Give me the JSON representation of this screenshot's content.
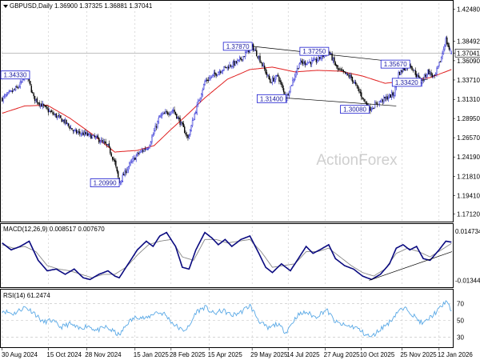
{
  "chart_data": {
    "type": "candlestick",
    "symbol": "GBPUSD",
    "title": "GBPUSD,Daily 1.36900 1.37325 1.36881 1.37041",
    "ohlc_last": {
      "open": 1.369,
      "high": 1.37325,
      "low": 1.36881,
      "close": 1.37041
    },
    "watermark": "ActionForex",
    "colors": {
      "bull": "#1a1ad0",
      "bear": "#000000",
      "ma": "#e02020",
      "trendline": "#000000",
      "annot_box": "#1a1ad0",
      "macd": "#0a0a80",
      "signal": "#888888",
      "rsi": "#5aa9e6",
      "grid": "#b8b8b8"
    },
    "price_axis": {
      "ylim": [
        1.163,
        1.432
      ],
      "ticks": [
        "1.42480",
        "1.38492",
        "1.37041",
        "1.36090",
        "1.33710",
        "1.31310",
        "1.28950",
        "1.26570",
        "1.24190",
        "1.21810",
        "1.19410",
        "1.17120"
      ],
      "current": "1.37041"
    },
    "x_axis": {
      "n_bars": 400,
      "tick_labels": [
        "30 Aug 2024",
        "15 Oct 2024",
        "28 Nov 2024",
        "15 Jan 2025",
        "28 Feb 2025",
        "15 Apr 2025",
        "29 May 2025",
        "14 Jul 2025",
        "27 Aug 2025",
        "10 Oct 2025",
        "25 Nov 2025",
        "12 Jan 2026"
      ],
      "tick_positions": [
        0,
        41,
        75,
        118,
        150,
        184,
        222,
        254,
        287,
        319,
        355,
        388
      ]
    },
    "price_path": [
      [
        0,
        1.314
      ],
      [
        14,
        1.328
      ],
      [
        22,
        1.3433
      ],
      [
        28,
        1.315
      ],
      [
        40,
        1.3
      ],
      [
        56,
        1.285
      ],
      [
        64,
        1.273
      ],
      [
        74,
        1.27
      ],
      [
        84,
        1.265
      ],
      [
        94,
        1.255
      ],
      [
        100,
        1.235
      ],
      [
        104,
        1.2099
      ],
      [
        112,
        1.23
      ],
      [
        120,
        1.245
      ],
      [
        130,
        1.255
      ],
      [
        140,
        1.292
      ],
      [
        152,
        1.3
      ],
      [
        160,
        1.28
      ],
      [
        165,
        1.265
      ],
      [
        172,
        1.3
      ],
      [
        180,
        1.335
      ],
      [
        195,
        1.35
      ],
      [
        210,
        1.36
      ],
      [
        222,
        1.3787
      ],
      [
        228,
        1.365
      ],
      [
        238,
        1.335
      ],
      [
        245,
        1.342
      ],
      [
        252,
        1.314
      ],
      [
        264,
        1.358
      ],
      [
        278,
        1.36
      ],
      [
        290,
        1.3725
      ],
      [
        298,
        1.35
      ],
      [
        310,
        1.34
      ],
      [
        326,
        1.3008
      ],
      [
        335,
        1.31
      ],
      [
        348,
        1.32
      ],
      [
        352,
        1.345
      ],
      [
        362,
        1.3567
      ],
      [
        372,
        1.3342
      ],
      [
        378,
        1.348
      ],
      [
        384,
        1.34
      ],
      [
        390,
        1.365
      ],
      [
        394,
        1.387
      ],
      [
        397,
        1.375
      ],
      [
        399,
        1.3704
      ]
    ],
    "moving_average": [
      [
        0,
        1.296
      ],
      [
        20,
        1.305
      ],
      [
        40,
        1.306
      ],
      [
        60,
        1.29
      ],
      [
        80,
        1.27
      ],
      [
        100,
        1.248
      ],
      [
        120,
        1.25
      ],
      [
        135,
        1.256
      ],
      [
        150,
        1.276
      ],
      [
        165,
        1.295
      ],
      [
        180,
        1.315
      ],
      [
        200,
        1.338
      ],
      [
        220,
        1.35
      ],
      [
        240,
        1.353
      ],
      [
        260,
        1.347
      ],
      [
        280,
        1.349
      ],
      [
        300,
        1.348
      ],
      [
        320,
        1.342
      ],
      [
        340,
        1.333
      ],
      [
        360,
        1.336
      ],
      [
        380,
        1.34
      ],
      [
        399,
        1.35
      ]
    ],
    "trendlines": [
      {
        "from": [
          222,
          1.3787
        ],
        "to": [
          340,
          1.361
        ]
      },
      {
        "from": [
          240,
          1.316
        ],
        "to": [
          350,
          1.305
        ]
      },
      {
        "from": [
          355,
          1.333
        ],
        "to": [
          378,
          1.338
        ]
      }
    ],
    "annotations": [
      {
        "label": "1.37870",
        "bar": 222,
        "price": 1.3787,
        "side": "left"
      },
      {
        "label": "1.37250",
        "bar": 290,
        "price": 1.3725,
        "side": "left"
      },
      {
        "label": "1.31400",
        "bar": 252,
        "price": 1.314,
        "side": "left"
      },
      {
        "label": "1.30080",
        "bar": 326,
        "price": 1.3008,
        "side": "left"
      },
      {
        "label": "1.35670",
        "bar": 362,
        "price": 1.3567,
        "side": "left"
      },
      {
        "label": "1.33420",
        "bar": 372,
        "price": 1.3342,
        "side": "left"
      },
      {
        "label": "1.20990",
        "bar": 104,
        "price": 1.2099,
        "side": "left"
      },
      {
        "label": "1.34330",
        "bar": 22,
        "price": 1.3433,
        "side": "left"
      }
    ],
    "macd": {
      "label": "MACD(12,26,9) 0.008517 0.007670",
      "ylim": [
        -0.0165,
        0.0175
      ],
      "ticks": [
        "0.014734",
        "-0.013442"
      ],
      "line_path": [
        [
          0,
          0.008
        ],
        [
          8,
          0.004
        ],
        [
          16,
          0.006
        ],
        [
          24,
          0.009
        ],
        [
          32,
          -0.002
        ],
        [
          40,
          -0.008
        ],
        [
          48,
          -0.007
        ],
        [
          56,
          -0.01
        ],
        [
          64,
          -0.007
        ],
        [
          72,
          -0.012
        ],
        [
          78,
          -0.013
        ],
        [
          86,
          -0.01
        ],
        [
          94,
          -0.008
        ],
        [
          100,
          -0.011
        ],
        [
          104,
          -0.012
        ],
        [
          112,
          -0.004
        ],
        [
          120,
          0.004
        ],
        [
          128,
          0.009
        ],
        [
          134,
          0.006
        ],
        [
          140,
          0.012
        ],
        [
          146,
          0.014
        ],
        [
          154,
          0.006
        ],
        [
          160,
          -0.006
        ],
        [
          166,
          -0.007
        ],
        [
          172,
          0.004
        ],
        [
          180,
          0.014
        ],
        [
          186,
          0.011
        ],
        [
          192,
          0.007
        ],
        [
          198,
          0.01
        ],
        [
          204,
          0.006
        ],
        [
          212,
          0.01
        ],
        [
          220,
          0.012
        ],
        [
          228,
          0.002
        ],
        [
          234,
          -0.006
        ],
        [
          240,
          -0.009
        ],
        [
          248,
          -0.004
        ],
        [
          256,
          -0.008
        ],
        [
          262,
          -0.002
        ],
        [
          270,
          0.006
        ],
        [
          276,
          0.002
        ],
        [
          282,
          0.004
        ],
        [
          290,
          0.007
        ],
        [
          296,
          -0.001
        ],
        [
          304,
          -0.005
        ],
        [
          312,
          -0.007
        ],
        [
          320,
          -0.011
        ],
        [
          328,
          -0.013
        ],
        [
          336,
          -0.01
        ],
        [
          344,
          -0.004
        ],
        [
          350,
          0.005
        ],
        [
          356,
          0.007
        ],
        [
          362,
          0.004
        ],
        [
          368,
          0.006
        ],
        [
          374,
          -0.001
        ],
        [
          380,
          -0.002
        ],
        [
          388,
          0.004
        ],
        [
          394,
          0.009
        ],
        [
          399,
          0.0085
        ]
      ],
      "signal_path": [
        [
          0,
          0.007
        ],
        [
          10,
          0.005
        ],
        [
          20,
          0.006
        ],
        [
          30,
          0.003
        ],
        [
          40,
          -0.005
        ],
        [
          50,
          -0.007
        ],
        [
          60,
          -0.008
        ],
        [
          70,
          -0.01
        ],
        [
          80,
          -0.012
        ],
        [
          90,
          -0.01
        ],
        [
          100,
          -0.01
        ],
        [
          110,
          -0.006
        ],
        [
          120,
          0.001
        ],
        [
          130,
          0.007
        ],
        [
          140,
          0.009
        ],
        [
          150,
          0.01
        ],
        [
          160,
          0.0
        ],
        [
          170,
          -0.002
        ],
        [
          180,
          0.01
        ],
        [
          190,
          0.01
        ],
        [
          200,
          0.008
        ],
        [
          210,
          0.009
        ],
        [
          220,
          0.01
        ],
        [
          230,
          0.003
        ],
        [
          240,
          -0.006
        ],
        [
          250,
          -0.005
        ],
        [
          260,
          -0.004
        ],
        [
          270,
          0.003
        ],
        [
          280,
          0.003
        ],
        [
          290,
          0.005
        ],
        [
          300,
          0.0
        ],
        [
          310,
          -0.005
        ],
        [
          320,
          -0.009
        ],
        [
          330,
          -0.011
        ],
        [
          340,
          -0.007
        ],
        [
          350,
          0.002
        ],
        [
          360,
          0.005
        ],
        [
          370,
          0.003
        ],
        [
          380,
          0.0
        ],
        [
          390,
          0.004
        ],
        [
          399,
          0.0077
        ]
      ],
      "trendline": {
        "from": [
          326,
          -0.0135
        ],
        "to": [
          399,
          0.003
        ]
      }
    },
    "rsi": {
      "label": "RSI(14) 61.2474",
      "ylim": [
        20,
        85
      ],
      "levels": [
        "70",
        "50",
        "30"
      ],
      "tick_labels": [
        "70",
        "50",
        "30"
      ],
      "path": [
        [
          0,
          62
        ],
        [
          10,
          58
        ],
        [
          20,
          66
        ],
        [
          28,
          60
        ],
        [
          36,
          48
        ],
        [
          44,
          50
        ],
        [
          52,
          42
        ],
        [
          60,
          46
        ],
        [
          68,
          40
        ],
        [
          76,
          44
        ],
        [
          84,
          38
        ],
        [
          92,
          42
        ],
        [
          100,
          36
        ],
        [
          104,
          32
        ],
        [
          112,
          48
        ],
        [
          120,
          55
        ],
        [
          128,
          52
        ],
        [
          136,
          60
        ],
        [
          144,
          58
        ],
        [
          152,
          46
        ],
        [
          160,
          38
        ],
        [
          166,
          42
        ],
        [
          172,
          60
        ],
        [
          180,
          66
        ],
        [
          188,
          58
        ],
        [
          196,
          62
        ],
        [
          204,
          56
        ],
        [
          212,
          60
        ],
        [
          220,
          68
        ],
        [
          228,
          50
        ],
        [
          236,
          40
        ],
        [
          244,
          46
        ],
        [
          252,
          36
        ],
        [
          262,
          56
        ],
        [
          270,
          60
        ],
        [
          278,
          54
        ],
        [
          288,
          63
        ],
        [
          296,
          48
        ],
        [
          304,
          44
        ],
        [
          314,
          42
        ],
        [
          322,
          34
        ],
        [
          328,
          30
        ],
        [
          336,
          40
        ],
        [
          344,
          48
        ],
        [
          352,
          62
        ],
        [
          360,
          64
        ],
        [
          368,
          52
        ],
        [
          374,
          46
        ],
        [
          382,
          56
        ],
        [
          390,
          66
        ],
        [
          394,
          74
        ],
        [
          397,
          66
        ],
        [
          399,
          61.2
        ]
      ]
    }
  }
}
